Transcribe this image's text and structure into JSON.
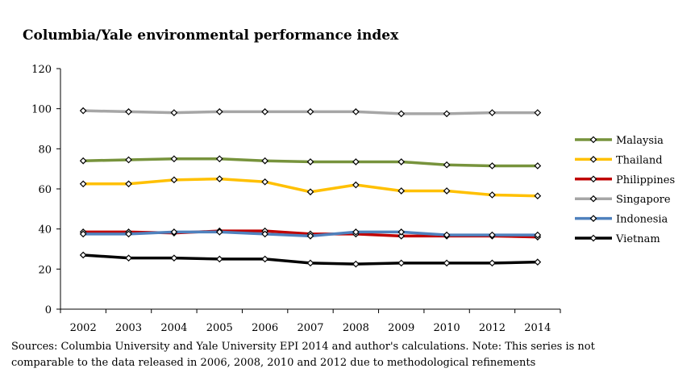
{
  "chart_data": {
    "type": "line",
    "title": "Columbia/Yale environmental performance index",
    "xlabel": "",
    "ylabel": "",
    "categories": [
      "2002",
      "2003",
      "2004",
      "2005",
      "2006",
      "2007",
      "2008",
      "2009",
      "2010",
      "2012",
      "2014"
    ],
    "ylim": [
      0,
      120
    ],
    "yticks": [
      0,
      20,
      40,
      60,
      80,
      100,
      120
    ],
    "grid": false,
    "legend_position": "right",
    "series": [
      {
        "name": "Malaysia",
        "color": "#77933c",
        "values": [
          74,
          74.5,
          75,
          75,
          74,
          73.5,
          73.5,
          73.5,
          72,
          71.5,
          71.5
        ]
      },
      {
        "name": "Thailand",
        "color": "#ffc000",
        "values": [
          62.5,
          62.5,
          64.5,
          65,
          63.5,
          58.5,
          62,
          59,
          59,
          57,
          56.5
        ]
      },
      {
        "name": "Philippines",
        "color": "#c00000",
        "values": [
          38.5,
          38.5,
          38,
          39,
          39,
          37.5,
          37.5,
          36.5,
          36.5,
          36.5,
          36
        ]
      },
      {
        "name": "Singapore",
        "color": "#a6a6a6",
        "values": [
          99,
          98.5,
          98,
          98.5,
          98.5,
          98.5,
          98.5,
          97.5,
          97.5,
          98,
          98
        ]
      },
      {
        "name": "Indonesia",
        "color": "#4f81bd",
        "values": [
          37.5,
          37.5,
          38.5,
          38.5,
          37.5,
          36.5,
          38.5,
          38.5,
          37,
          37,
          37
        ]
      },
      {
        "name": "Vietnam",
        "color": "#000000",
        "values": [
          27,
          25.5,
          25.5,
          25,
          25,
          23,
          22.5,
          23,
          23,
          23,
          23.5
        ]
      }
    ]
  },
  "source_lines": [
    "Sources: Columbia University and Yale University EPI 2014 and author's calculations. Note: This series is not",
    "comparable to the data released in 2006, 2008, 2010 and 2012 due to methodological refinements"
  ]
}
